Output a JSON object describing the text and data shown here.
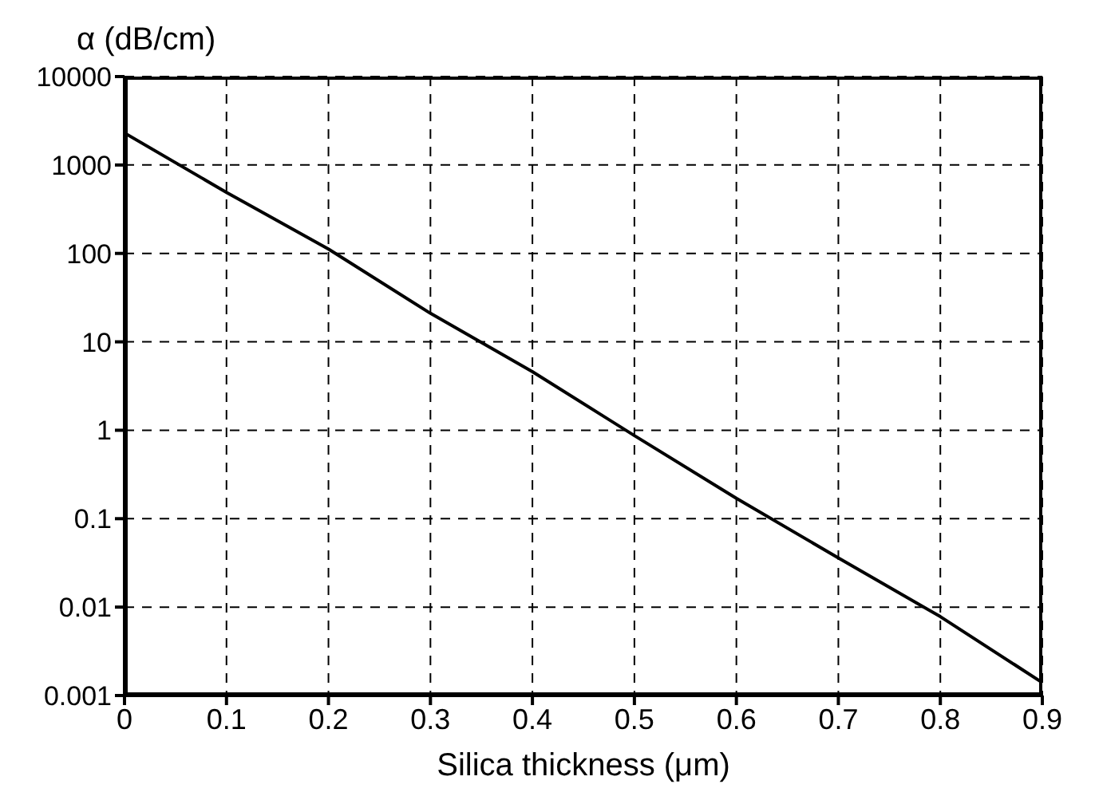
{
  "chart_data": {
    "type": "line",
    "xlabel": "Silica thickness (μm)",
    "ylabel": "α (dB/cm)",
    "x": [
      0,
      0.1,
      0.2,
      0.3,
      0.4,
      0.5,
      0.6,
      0.7,
      0.8,
      0.9
    ],
    "series": [
      {
        "color": "#000000",
        "values": [
          2300,
          490,
          112,
          21,
          4.6,
          0.87,
          0.17,
          0.036,
          0.0078,
          0.0014
        ]
      }
    ],
    "xlim": [
      0,
      0.9
    ],
    "xticks": [
      0,
      0.1,
      0.2,
      0.3,
      0.4,
      0.5,
      0.6,
      0.7,
      0.8,
      0.9
    ],
    "ylim": [
      0.001,
      10000
    ],
    "yticks": [
      0.001,
      0.01,
      0.1,
      1,
      10,
      100,
      1000,
      10000
    ],
    "log": "y",
    "grid": true,
    "legend": false,
    "marker": "none",
    "line_style": "solid"
  }
}
